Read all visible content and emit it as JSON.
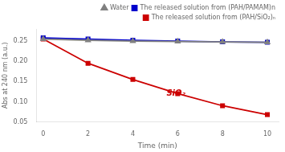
{
  "chart_data": {
    "type": "line",
    "x": [
      0,
      2,
      4,
      6,
      8,
      10
    ],
    "series": [
      {
        "name": "Water",
        "color": "#808080",
        "marker": "triangle",
        "line_style": "solid",
        "values": [
          0.255,
          0.252,
          0.25,
          0.249,
          0.248,
          0.247
        ]
      },
      {
        "name": "The released solution from (PAH/PAMAM)n",
        "color": "#0000cc",
        "marker": "square",
        "line_style": "solid",
        "values": [
          0.258,
          0.255,
          0.252,
          0.25,
          0.248,
          0.247
        ]
      },
      {
        "name": "The released solution from (PAH/SiO₂)ₙ",
        "color": "#cc0000",
        "marker": "square",
        "line_style": "solid",
        "values": [
          0.255,
          0.195,
          0.155,
          0.12,
          0.09,
          0.068
        ]
      }
    ],
    "xlabel": "Time (min)",
    "ylabel": "Abs at 240 nm (a.u.)",
    "xlim": [
      -0.3,
      10.5
    ],
    "ylim": [
      0.05,
      0.28
    ],
    "xticks": [
      0,
      2,
      4,
      6,
      8,
      10
    ],
    "yticks": [
      0.05,
      {
        "value": 0.1,
        "label": "0.10"
      },
      0.15,
      {
        "value": 0.2,
        "label": "0.20"
      },
      0.25
    ],
    "grid": false,
    "legend": "upper right",
    "annotations": [
      {
        "text": "SiO₂",
        "x": 5.5,
        "y": 0.115,
        "color": "#cc0000"
      }
    ]
  }
}
